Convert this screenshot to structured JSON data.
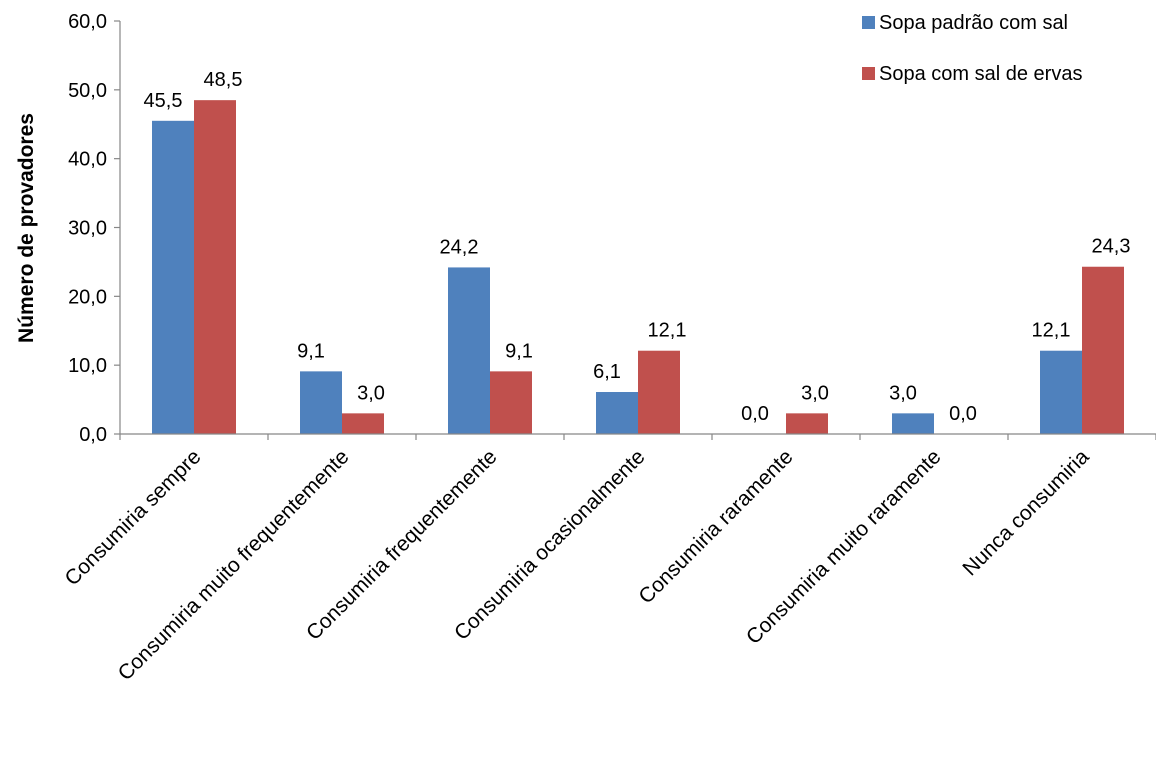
{
  "chart_data": {
    "type": "bar",
    "title": "",
    "xlabel": "",
    "ylabel": "Número de provadores",
    "ylim": [
      0,
      60
    ],
    "ytick_step": 10,
    "ytick_labels": [
      "0,0",
      "10,0",
      "20,0",
      "30,0",
      "40,0",
      "50,0",
      "60,0"
    ],
    "grid": false,
    "legend_position": "top-right",
    "categories": [
      "Consumiria sempre",
      "Consumiria muito frequentemente",
      "Consumiria frequentemente",
      "Consumiria ocasionalmente",
      "Consumiria raramente",
      "Consumiria muito raramente",
      "Nunca consumiria"
    ],
    "series": [
      {
        "name": "Sopa padrão com sal",
        "color": "#4F81BD",
        "values": [
          45.5,
          9.1,
          24.2,
          6.1,
          0.0,
          3.0,
          12.1
        ],
        "labels": [
          "45,5",
          "9,1",
          "24,2",
          "6,1",
          "0,0",
          "3,0",
          "12,1"
        ]
      },
      {
        "name": "Sopa com sal de ervas",
        "color": "#C0504D",
        "values": [
          48.5,
          3.0,
          9.1,
          12.1,
          3.0,
          0.0,
          24.3
        ],
        "labels": [
          "48,5",
          "3,0",
          "9,1",
          "12,1",
          "3,0",
          "0,0",
          "24,3"
        ]
      }
    ]
  }
}
